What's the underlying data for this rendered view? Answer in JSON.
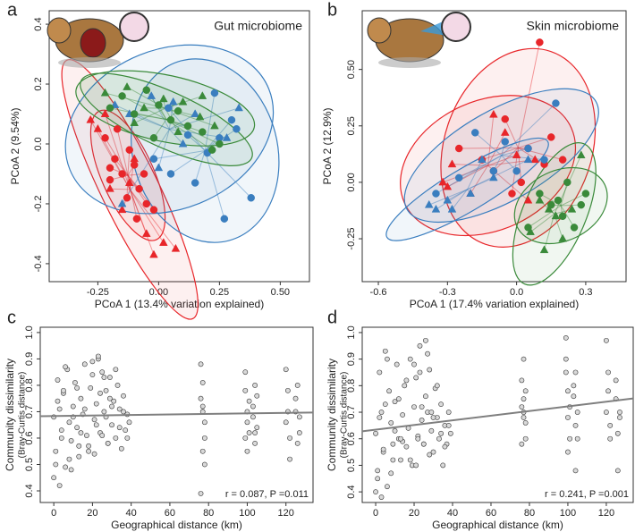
{
  "chart_data": [
    {
      "type": "scatter",
      "panel_label": "a",
      "title": "Gut microbiome",
      "xlabel": "PCoA 1 (13.4% variation explained)",
      "ylabel": "PCoA 2 (9.54%)",
      "xlim": [
        -0.45,
        0.62
      ],
      "ylim": [
        -0.46,
        0.445
      ],
      "xticks": [
        -0.25,
        {
          "value": 0,
          "label": "0.00"
        },
        0.25,
        {
          "value": 0.5,
          "label": "0.50"
        }
      ],
      "yticks": [
        -0.4,
        -0.2,
        {
          "value": 0,
          "label": "0.0"
        },
        0.2,
        0.4
      ],
      "series": [
        {
          "color": "#e8262a",
          "marker": "circle",
          "x": [
            -0.22,
            -0.18,
            -0.15,
            -0.12,
            -0.2,
            -0.08,
            -0.05,
            -0.1,
            -0.17,
            -0.02,
            -0.13,
            -0.06,
            -0.09,
            -0.2
          ],
          "values": [
            0.02,
            -0.05,
            -0.1,
            -0.02,
            -0.12,
            -0.15,
            -0.2,
            -0.07,
            0.05,
            -0.22,
            -0.18,
            -0.1,
            -0.25,
            -0.08
          ]
        },
        {
          "color": "#e8262a",
          "marker": "triangle",
          "x": [
            -0.28,
            -0.25,
            -0.2,
            -0.15,
            -0.05,
            -0.02,
            0.02,
            0.07,
            -0.1,
            -0.22,
            -0.12
          ],
          "values": [
            0.08,
            0.05,
            -0.15,
            -0.22,
            -0.3,
            -0.37,
            -0.33,
            -0.35,
            -0.05,
            0.1,
            -0.13
          ]
        },
        {
          "color": "#3a7ebf",
          "marker": "circle",
          "x": [
            0.23,
            0.3,
            0.38,
            0.32,
            0.2,
            0.12,
            0.04,
            -0.02,
            0.15,
            0.27,
            0.25,
            0.05
          ],
          "values": [
            0.17,
            0.08,
            -0.18,
            0.05,
            -0.03,
            0.03,
            0.12,
            -0.05,
            -0.13,
            -0.25,
            0.02,
            -0.1
          ]
        },
        {
          "color": "#3a7ebf",
          "marker": "triangle",
          "x": [
            -0.18,
            -0.12,
            -0.03,
            0.06,
            0.15,
            0.33,
            0.28,
            0.1,
            0.0,
            -0.15
          ],
          "values": [
            0.13,
            0.1,
            0.16,
            0.14,
            0.1,
            0.12,
            0.02,
            0.0,
            -0.08,
            -0.2
          ]
        },
        {
          "color": "#3a8a3a",
          "marker": "circle",
          "x": [
            -0.2,
            -0.15,
            -0.1,
            -0.05,
            0.0,
            0.05,
            0.12,
            0.18,
            0.25,
            0.22,
            0.08,
            -0.02
          ],
          "values": [
            0.12,
            0.16,
            0.1,
            0.18,
            0.13,
            0.08,
            0.06,
            0.04,
            0.0,
            -0.02,
            0.11,
            0.02
          ]
        },
        {
          "color": "#3a8a3a",
          "marker": "triangle",
          "x": [
            -0.22,
            -0.13,
            -0.06,
            0.02,
            0.1,
            0.17,
            0.23,
            0.18,
            0.08,
            -0.1
          ],
          "values": [
            0.17,
            0.19,
            0.12,
            0.15,
            0.14,
            0.09,
            0.06,
            0.16,
            0.04,
            0.07
          ]
        }
      ]
    },
    {
      "type": "scatter",
      "panel_label": "b",
      "title": "Skin microbiome",
      "xlabel": "PCoA 1 (17.4% variation explained)",
      "ylabel": "PCoA 2 (12.9%)",
      "xlim": [
        -0.67,
        0.475
      ],
      "ylim": [
        -0.44,
        0.76
      ],
      "xticks": [
        -0.6,
        -0.3,
        {
          "value": 0,
          "label": "0.0"
        },
        0.3
      ],
      "yticks": [
        -0.25,
        {
          "value": 0,
          "label": "0.00"
        },
        0.25,
        {
          "value": 0.5,
          "label": "0.50"
        }
      ],
      "series": [
        {
          "color": "#e8262a",
          "marker": "circle",
          "x": [
            0.1,
            -0.05,
            0.05,
            -0.15,
            0.12,
            0.02,
            -0.1,
            0.15,
            -0.02,
            0.2,
            -0.25
          ],
          "values": [
            0.62,
            0.28,
            0.15,
            0.1,
            0.08,
            0.0,
            0.05,
            0.2,
            -0.05,
            0.1,
            0.15
          ]
        },
        {
          "color": "#e8262a",
          "marker": "triangle",
          "x": [
            -0.32,
            -0.2,
            -0.1,
            0.0,
            0.08,
            -0.28,
            0.05,
            -0.05,
            -0.3
          ],
          "values": [
            0.0,
            -0.05,
            0.3,
            0.12,
            0.1,
            0.08,
            -0.08,
            0.22,
            -0.02
          ]
        },
        {
          "color": "#3a7ebf",
          "marker": "circle",
          "x": [
            -0.35,
            -0.18,
            -0.05,
            0.05,
            0.17,
            -0.1,
            0.12,
            -0.25,
            0.0
          ],
          "values": [
            -0.05,
            0.22,
            0.18,
            0.15,
            0.35,
            0.05,
            0.1,
            0.02,
            0.05
          ]
        },
        {
          "color": "#3a7ebf",
          "marker": "triangle",
          "x": [
            -0.38,
            -0.35,
            -0.3,
            -0.2,
            -0.1,
            0.05,
            -0.28,
            -0.15
          ],
          "values": [
            -0.1,
            -0.12,
            -0.08,
            -0.05,
            0.02,
            0.1,
            -0.12,
            0.1
          ]
        },
        {
          "color": "#3a8a3a",
          "marker": "circle",
          "x": [
            0.1,
            0.15,
            0.2,
            0.28,
            0.3,
            0.22,
            0.05,
            0.18,
            0.25
          ],
          "values": [
            -0.05,
            -0.1,
            -0.15,
            -0.1,
            -0.05,
            0.0,
            -0.2,
            -0.08,
            -0.2
          ]
        },
        {
          "color": "#3a8a3a",
          "marker": "triangle",
          "x": [
            0.06,
            0.12,
            0.17,
            0.24,
            0.28,
            0.1,
            0.2,
            0.14
          ],
          "values": [
            -0.22,
            -0.3,
            -0.15,
            -0.12,
            0.12,
            -0.08,
            -0.25,
            -0.12
          ]
        }
      ]
    },
    {
      "type": "scatter",
      "panel_label": "c",
      "xlabel": "Geographical distance (km)",
      "ylabel": "Community dissimilarity",
      "ylabel_sub": "(Bray-Curtis distance)",
      "annotation": "r = 0.087, P =0.011",
      "xlim": [
        -7,
        134
      ],
      "ylim": [
        0.356,
        1.02
      ],
      "xticks": [
        0,
        20,
        40,
        60,
        80,
        100,
        120
      ],
      "yticks": [
        0.4,
        0.5,
        0.6,
        0.7,
        0.8,
        0.9,
        {
          "value": 1,
          "label": "1.0"
        }
      ],
      "fit_line": {
        "color": "#7f7f7f",
        "x": [
          -7,
          134
        ],
        "values": [
          0.683,
          0.697
        ]
      },
      "series": [
        {
          "color": "#d9d9d9",
          "edgecolor": "#333333",
          "marker": "circle",
          "x": [
            0,
            1,
            2,
            3,
            4,
            5,
            6,
            7,
            8,
            9,
            10,
            11,
            12,
            13,
            14,
            15,
            16,
            17,
            18,
            19,
            20,
            21,
            22,
            23,
            24,
            25,
            26,
            27,
            28,
            29,
            30,
            31,
            32,
            33,
            34,
            35,
            36,
            37,
            38,
            39,
            0,
            2,
            4,
            6,
            8,
            10,
            12,
            14,
            16,
            18,
            20,
            22,
            24,
            26,
            28,
            30,
            32,
            34,
            36,
            38,
            1,
            3,
            5,
            9,
            13,
            21,
            23,
            25,
            27,
            29,
            76,
            77,
            78,
            76,
            77,
            78,
            77,
            76,
            77,
            78,
            99,
            100,
            101,
            100,
            99,
            101,
            100,
            99,
            103,
            104,
            105,
            104,
            103,
            105,
            104,
            120,
            121,
            122,
            121,
            120,
            122,
            125,
            126,
            127,
            126,
            125,
            127
          ],
          "values": [
            0.68,
            0.55,
            0.82,
            0.71,
            0.63,
            0.77,
            0.49,
            0.86,
            0.66,
            0.59,
            0.72,
            0.81,
            0.64,
            0.53,
            0.75,
            0.69,
            0.88,
            0.61,
            0.57,
            0.79,
            0.84,
            0.67,
            0.73,
            0.9,
            0.62,
            0.85,
            0.7,
            0.78,
            0.58,
            0.83,
            0.65,
            0.74,
            0.6,
            0.8,
            0.71,
            0.56,
            0.76,
            0.63,
            0.69,
            0.66,
            0.45,
            0.74,
            0.6,
            0.87,
            0.52,
            0.68,
            0.79,
            0.62,
            0.71,
            0.55,
            0.89,
            0.65,
            0.77,
            0.83,
            0.58,
            0.72,
            0.86,
            0.64,
            0.7,
            0.6,
            0.5,
            0.42,
            0.78,
            0.48,
            0.57,
            0.54,
            0.91,
            0.61,
            0.68,
            0.75,
            0.88,
            0.72,
            0.6,
            0.39,
            0.81,
            0.66,
            0.55,
            0.75,
            0.7,
            0.5,
            0.85,
            0.7,
            0.62,
            0.55,
            0.78,
            0.74,
            0.66,
            0.6,
            0.72,
            0.8,
            0.64,
            0.58,
            0.68,
            0.76,
            0.62,
            0.86,
            0.7,
            0.6,
            0.78,
            0.66,
            0.52,
            0.75,
            0.8,
            0.62,
            0.58,
            0.7,
            0.68
          ]
        }
      ]
    },
    {
      "type": "scatter",
      "panel_label": "d",
      "xlabel": "Geographical distance (km)",
      "ylabel": "Community dissimilarity",
      "ylabel_sub": "(Bray-Curtis distance)",
      "annotation": "r = 0.241, P =0.001",
      "xlim": [
        -7,
        134
      ],
      "ylim": [
        0.36,
        1.02
      ],
      "xticks": [
        0,
        20,
        40,
        60,
        80,
        100,
        120
      ],
      "yticks": [
        0.4,
        0.5,
        0.6,
        0.7,
        0.8,
        0.9,
        {
          "value": 1,
          "label": "1.0"
        }
      ],
      "fit_line": {
        "color": "#7f7f7f",
        "x": [
          -7,
          134
        ],
        "values": [
          0.628,
          0.752
        ]
      },
      "series": [
        {
          "color": "#d9d9d9",
          "edgecolor": "#333333",
          "marker": "circle",
          "x": [
            0,
            1,
            2,
            3,
            4,
            5,
            6,
            7,
            8,
            9,
            10,
            11,
            12,
            13,
            14,
            15,
            16,
            17,
            18,
            19,
            20,
            21,
            22,
            23,
            24,
            25,
            26,
            27,
            28,
            29,
            30,
            31,
            32,
            33,
            34,
            35,
            36,
            37,
            38,
            39,
            0,
            2,
            4,
            6,
            8,
            10,
            12,
            14,
            16,
            18,
            20,
            22,
            24,
            26,
            28,
            30,
            32,
            34,
            36,
            38,
            1,
            3,
            5,
            9,
            13,
            21,
            23,
            25,
            27,
            29,
            76,
            77,
            78,
            76,
            77,
            78,
            77,
            76,
            77,
            78,
            99,
            100,
            101,
            100,
            99,
            101,
            100,
            99,
            103,
            104,
            105,
            104,
            103,
            105,
            104,
            120,
            121,
            122,
            121,
            120,
            122,
            125,
            126,
            127,
            126,
            125,
            127
          ],
          "values": [
            0.62,
            0.48,
            0.85,
            0.7,
            0.55,
            0.93,
            0.42,
            0.78,
            0.66,
            0.58,
            0.74,
            0.88,
            0.6,
            0.52,
            0.69,
            0.8,
            0.57,
            0.64,
            0.9,
            0.5,
            0.72,
            0.83,
            0.61,
            0.95,
            0.67,
            0.58,
            0.76,
            0.7,
            0.86,
            0.63,
            0.55,
            0.79,
            0.68,
            0.6,
            0.73,
            0.5,
            0.65,
            0.58,
            0.7,
            0.62,
            0.4,
            0.68,
            0.56,
            0.9,
            0.47,
            0.63,
            0.75,
            0.59,
            0.82,
            0.52,
            0.88,
            0.6,
            0.72,
            0.97,
            0.54,
            0.68,
            0.8,
            0.62,
            0.57,
            0.65,
            0.45,
            0.38,
            0.73,
            0.52,
            0.6,
            0.5,
            0.85,
            0.58,
            0.92,
            0.7,
            0.82,
            0.7,
            0.6,
            0.58,
            0.9,
            0.66,
            0.75,
            0.72,
            0.68,
            0.78,
            0.98,
            0.78,
            0.6,
            0.68,
            0.85,
            0.72,
            0.55,
            0.9,
            0.8,
            0.65,
            0.7,
            0.48,
            0.76,
            0.6,
            0.85,
            0.97,
            0.78,
            0.65,
            0.85,
            0.7,
            0.6,
            0.82,
            0.62,
            0.7,
            0.48,
            0.75,
            0.68
          ]
        }
      ]
    }
  ]
}
